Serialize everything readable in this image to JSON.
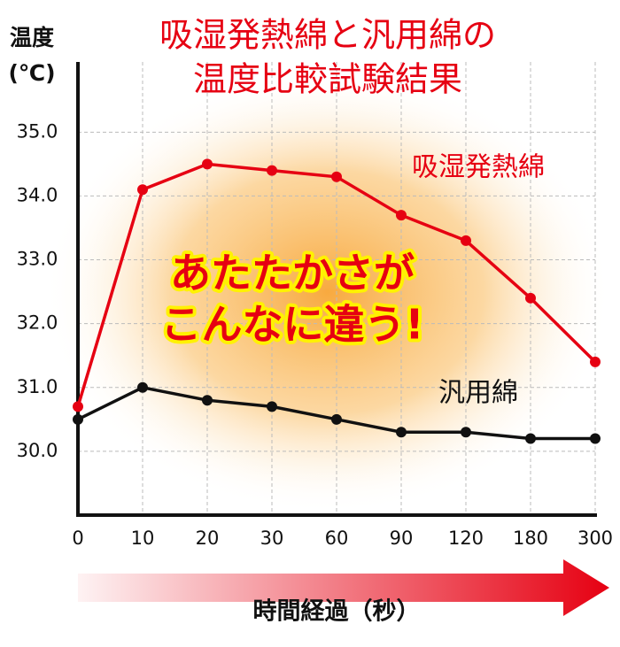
{
  "chart_data": {
    "type": "line",
    "title": [
      "吸湿発熱綿と汎用綿の",
      "温度比較試験結果"
    ],
    "y_label": [
      "温度",
      "(℃)"
    ],
    "x_label": "時間経過（秒）",
    "annotation": [
      "あたたかさが",
      "こんなに違う!"
    ],
    "categories": [
      "0",
      "10",
      "20",
      "30",
      "60",
      "90",
      "120",
      "180",
      "300"
    ],
    "series": [
      {
        "name": "吸湿発熱綿",
        "color": "#e60012",
        "values": [
          30.7,
          34.1,
          34.5,
          34.4,
          34.3,
          33.7,
          33.3,
          32.4,
          31.4
        ]
      },
      {
        "name": "汎用綿",
        "color": "#111111",
        "values": [
          30.5,
          31.0,
          30.8,
          30.7,
          30.5,
          30.3,
          30.3,
          30.2,
          30.2
        ]
      }
    ],
    "ylim": [
      29.0,
      36.1
    ],
    "yticks": [
      {
        "value": 30,
        "label": "30.0"
      },
      {
        "value": 31,
        "label": "31.0"
      },
      {
        "value": 32,
        "label": "32.0"
      },
      {
        "value": 33,
        "label": "33.0"
      },
      {
        "value": 34,
        "label": "34.0"
      },
      {
        "value": 35,
        "label": "35.0"
      }
    ],
    "grid": true
  }
}
